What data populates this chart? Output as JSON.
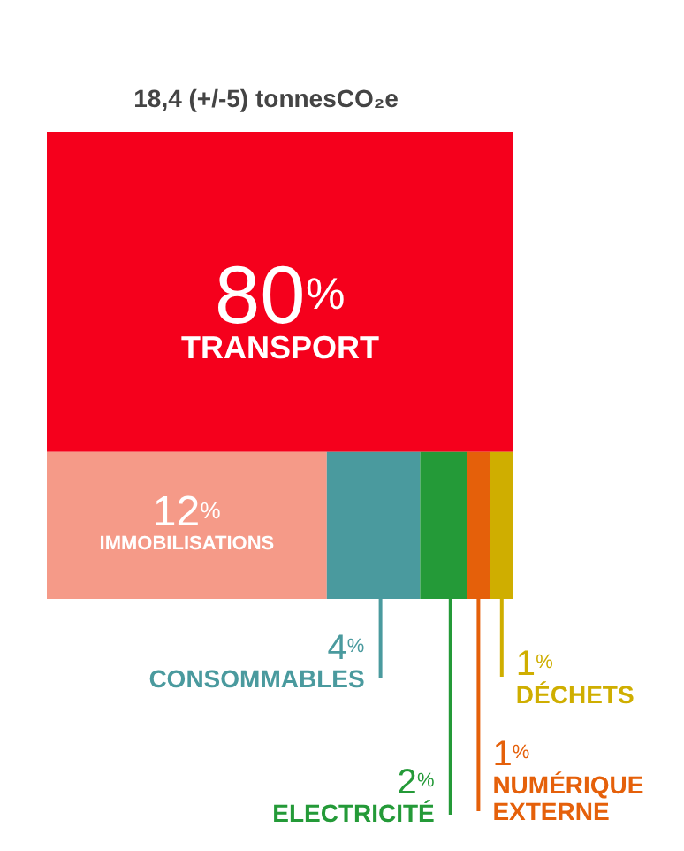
{
  "chart_data": {
    "type": "other",
    "title": "18,4 (+/-5) tonnesCO₂e",
    "categories": [
      "TRANSPORT",
      "IMMOBILISATIONS",
      "CONSOMMABLES",
      "ELECTRICITÉ",
      "NUMÉRIQUE EXTERNE",
      "DÉCHETS"
    ],
    "values": [
      80,
      12,
      4,
      2,
      1,
      1
    ],
    "value_labels": [
      "80%",
      "12%",
      "4%",
      "2%",
      "1%",
      "1%"
    ],
    "colors": [
      "#f5001c",
      "#f59a88",
      "#4a9a9e",
      "#249a38",
      "#e5600a",
      "#cfae00"
    ]
  }
}
